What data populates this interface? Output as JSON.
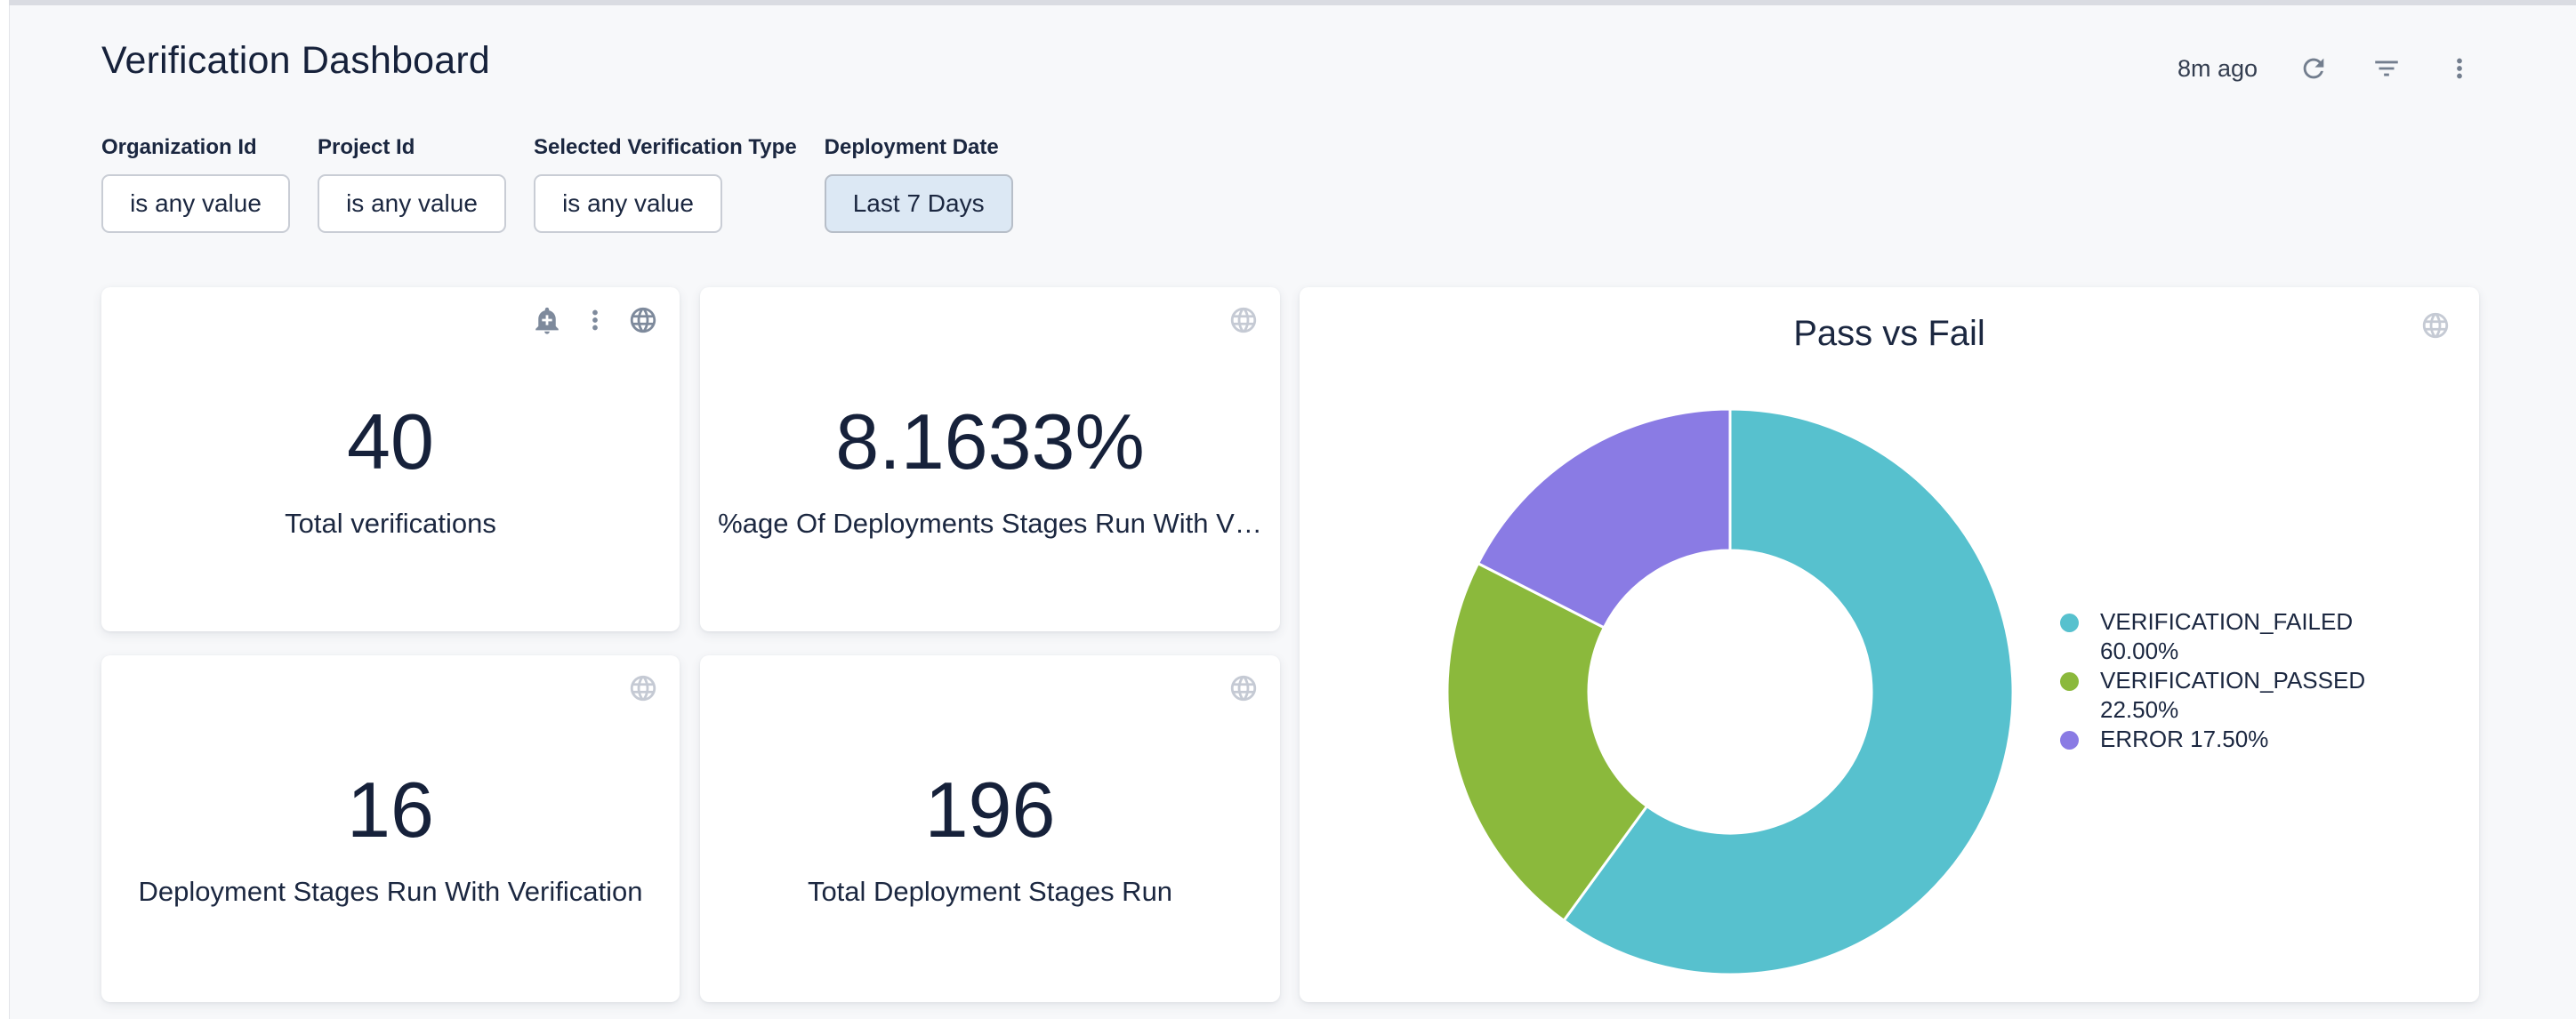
{
  "header": {
    "title": "Verification Dashboard",
    "last_refresh": "8m ago"
  },
  "filters": [
    {
      "label": "Organization Id",
      "value": "is any value",
      "active": false
    },
    {
      "label": "Project Id",
      "value": "is any value",
      "active": false
    },
    {
      "label": "Selected Verification Type",
      "value": "is any value",
      "active": false
    },
    {
      "label": "Deployment Date",
      "value": "Last 7 Days",
      "active": true
    }
  ],
  "tiles": [
    {
      "value": "40",
      "label": "Total verifications"
    },
    {
      "value": "8.1633%",
      "label": "%age Of Deployments Stages Run With V…"
    },
    {
      "value": "16",
      "label": "Deployment Stages Run With Verification"
    },
    {
      "value": "196",
      "label": "Total Deployment Stages Run"
    }
  ],
  "chart_data": {
    "type": "pie",
    "subtype": "donut",
    "title": "Pass vs Fail",
    "legend_position": "right",
    "start_angle_deg": 0,
    "direction": "clockwise",
    "inner_radius_ratio": 0.5,
    "slices": [
      {
        "label": "VERIFICATION_FAILED",
        "value": 60.0,
        "pct_display": "60.00%",
        "color": "#57C1CE"
      },
      {
        "label": "VERIFICATION_PASSED",
        "value": 22.5,
        "pct_display": "22.50%",
        "color": "#8BB93C"
      },
      {
        "label": "ERROR",
        "value": 17.5,
        "pct_display": "17.50%",
        "color": "#8A7BE4"
      }
    ]
  },
  "icons": {
    "header": [
      "refresh-icon",
      "filter-icon",
      "kebab-menu-icon"
    ],
    "tile_hover": [
      "bell-plus-icon",
      "kebab-menu-icon",
      "globe-icon"
    ],
    "tile_default": [
      "globe-icon"
    ]
  },
  "colors": {
    "background": "#F7F8FA",
    "card": "#FFFFFF",
    "text_primary": "#16213A",
    "icon_muted": "#C5CAD4",
    "icon_active": "#7E8A9C",
    "active_filter_chip_bg": "#DCE8F4",
    "slice_verification_failed": "#57C1CE",
    "slice_verification_passed": "#8BB93C",
    "slice_error": "#8A7BE4"
  }
}
